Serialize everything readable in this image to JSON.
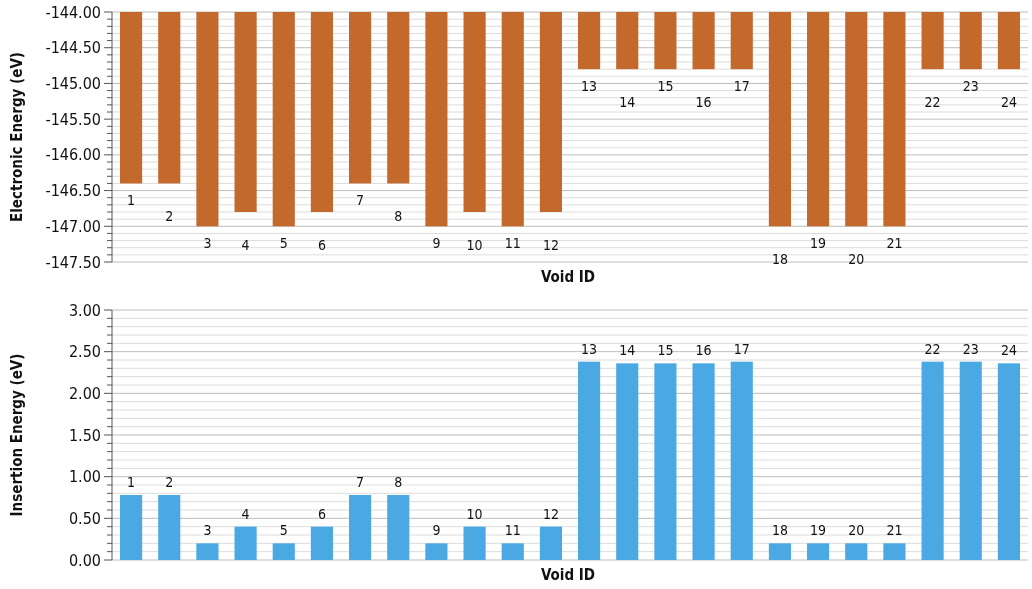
{
  "chart_data": [
    {
      "type": "bar",
      "xlabel": "Void ID",
      "ylabel": "Electronic Energy (eV)",
      "categories": [
        "1",
        "2",
        "3",
        "4",
        "5",
        "6",
        "7",
        "8",
        "9",
        "10",
        "11",
        "12",
        "13",
        "14",
        "15",
        "16",
        "17",
        "18",
        "19",
        "20",
        "21",
        "22",
        "23",
        "24"
      ],
      "series": [
        {
          "color": "#c4692c",
          "values": [
            -146.4,
            -146.4,
            -147.0,
            -146.8,
            -147.0,
            -146.8,
            -146.4,
            -146.4,
            -147.0,
            -146.8,
            -147.0,
            -146.8,
            -144.8,
            -144.8,
            -144.8,
            -144.8,
            -144.8,
            -147.0,
            -147.0,
            -147.0,
            -147.0,
            -144.8,
            -144.8,
            -144.8
          ]
        }
      ],
      "ylim": [
        -147.5,
        -144
      ],
      "yticks": [
        {
          "value": -147.5,
          "label": "-147.50"
        },
        {
          "value": -147.4,
          "label": null
        },
        {
          "value": -147.3,
          "label": null
        },
        {
          "value": -147.2,
          "label": null
        },
        {
          "value": -147.1,
          "label": null
        },
        {
          "value": -147,
          "label": "-147.00"
        },
        {
          "value": -146.9,
          "label": null
        },
        {
          "value": -146.8,
          "label": null
        },
        {
          "value": -146.7,
          "label": null
        },
        {
          "value": -146.6,
          "label": null
        },
        {
          "value": -146.5,
          "label": "-146.50"
        },
        {
          "value": -146.4,
          "label": null
        },
        {
          "value": -146.3,
          "label": null
        },
        {
          "value": -146.2,
          "label": null
        },
        {
          "value": -146.1,
          "label": null
        },
        {
          "value": -146,
          "label": "-146.00"
        },
        {
          "value": -145.9,
          "label": null
        },
        {
          "value": -145.8,
          "label": null
        },
        {
          "value": -145.7,
          "label": null
        },
        {
          "value": -145.6,
          "label": null
        },
        {
          "value": -145.5,
          "label": "-145.50"
        },
        {
          "value": -145.4,
          "label": null
        },
        {
          "value": -145.3,
          "label": null
        },
        {
          "value": -145.2,
          "label": null
        },
        {
          "value": -145.1,
          "label": null
        },
        {
          "value": -145,
          "label": "-145.00"
        },
        {
          "value": -144.9,
          "label": null
        },
        {
          "value": -144.8,
          "label": null
        },
        {
          "value": -144.7,
          "label": null
        },
        {
          "value": -144.6,
          "label": null
        },
        {
          "value": -144.5,
          "label": "-144.50"
        },
        {
          "value": -144.4,
          "label": null
        },
        {
          "value": -144.3,
          "label": null
        },
        {
          "value": -144.2,
          "label": null
        },
        {
          "value": -144.1,
          "label": null
        },
        {
          "value": -144,
          "label": "-144.00"
        }
      ],
      "grid": "y"
    },
    {
      "type": "bar",
      "xlabel": "Void ID",
      "ylabel": "Insertion Energy (eV)",
      "categories": [
        "1",
        "2",
        "3",
        "4",
        "5",
        "6",
        "7",
        "8",
        "9",
        "10",
        "11",
        "12",
        "13",
        "14",
        "15",
        "16",
        "17",
        "18",
        "19",
        "20",
        "21",
        "22",
        "23",
        "24"
      ],
      "series": [
        {
          "color": "#4aa9e2",
          "values": [
            0.78,
            0.78,
            0.2,
            0.4,
            0.2,
            0.4,
            0.78,
            0.78,
            0.2,
            0.4,
            0.2,
            0.4,
            2.38,
            2.36,
            2.36,
            2.36,
            2.38,
            0.2,
            0.2,
            0.2,
            0.2,
            2.38,
            2.38,
            2.36
          ]
        }
      ],
      "ylim": [
        0,
        3
      ],
      "yticks": [
        {
          "value": 0,
          "label": "0.00"
        },
        {
          "value": 0.1,
          "label": null
        },
        {
          "value": 0.2,
          "label": null
        },
        {
          "value": 0.3,
          "label": null
        },
        {
          "value": 0.4,
          "label": null
        },
        {
          "value": 0.5,
          "label": "0.50"
        },
        {
          "value": 0.6,
          "label": null
        },
        {
          "value": 0.7,
          "label": null
        },
        {
          "value": 0.8,
          "label": null
        },
        {
          "value": 0.9,
          "label": null
        },
        {
          "value": 1,
          "label": "1.00"
        },
        {
          "value": 1.1,
          "label": null
        },
        {
          "value": 1.2,
          "label": null
        },
        {
          "value": 1.3,
          "label": null
        },
        {
          "value": 1.4,
          "label": null
        },
        {
          "value": 1.5,
          "label": "1.50"
        },
        {
          "value": 1.6,
          "label": null
        },
        {
          "value": 1.7,
          "label": null
        },
        {
          "value": 1.8,
          "label": null
        },
        {
          "value": 1.9,
          "label": null
        },
        {
          "value": 2,
          "label": "2.00"
        },
        {
          "value": 2.1,
          "label": null
        },
        {
          "value": 2.2,
          "label": null
        },
        {
          "value": 2.3,
          "label": null
        },
        {
          "value": 2.4,
          "label": null
        },
        {
          "value": 2.5,
          "label": "2.50"
        },
        {
          "value": 2.6,
          "label": null
        },
        {
          "value": 2.7,
          "label": null
        },
        {
          "value": 2.8,
          "label": null
        },
        {
          "value": 2.9,
          "label": null
        },
        {
          "value": 3,
          "label": "3.00"
        }
      ],
      "grid": "y"
    }
  ]
}
